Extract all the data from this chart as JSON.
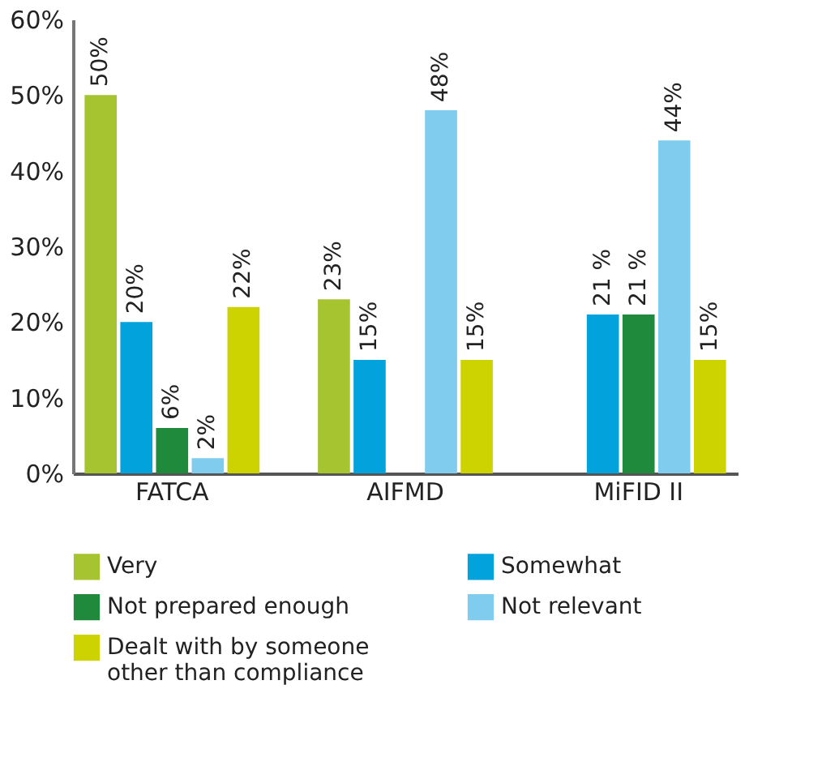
{
  "chart_data": {
    "type": "bar",
    "categories": [
      "FATCA",
      "AIFMD",
      "MiFID II"
    ],
    "series": [
      {
        "name": "Very",
        "color": "#a5c42f",
        "values": [
          50,
          23,
          null
        ],
        "value_labels": [
          "50%",
          "23%",
          null
        ]
      },
      {
        "name": "Somewhat",
        "color": "#02a2dc",
        "values": [
          20,
          15,
          21
        ],
        "value_labels": [
          "20%",
          "15%",
          "21 %"
        ]
      },
      {
        "name": "Not prepared enough",
        "color": "#1f8a3b",
        "values": [
          6,
          null,
          21
        ],
        "value_labels": [
          "6%",
          null,
          "21 %"
        ]
      },
      {
        "name": "Not relevant",
        "color": "#7fccee",
        "values": [
          2,
          48,
          44
        ],
        "value_labels": [
          "2%",
          "48%",
          "44%"
        ]
      },
      {
        "name": "Dealt with by someone other than compliance",
        "color": "#cdd300",
        "values": [
          22,
          15,
          15
        ],
        "value_labels": [
          "22%",
          "15%",
          "15%"
        ]
      }
    ],
    "ylim": [
      0,
      60
    ],
    "yticks": [
      {
        "value": 0,
        "label": "0%"
      },
      {
        "value": 10,
        "label": "10%"
      },
      {
        "value": 20,
        "label": "20%"
      },
      {
        "value": 30,
        "label": "30%"
      },
      {
        "value": 40,
        "label": "40%"
      },
      {
        "value": 50,
        "label": "50%"
      },
      {
        "value": 60,
        "label": "60%"
      }
    ],
    "grid": false,
    "legend": "bottom"
  }
}
